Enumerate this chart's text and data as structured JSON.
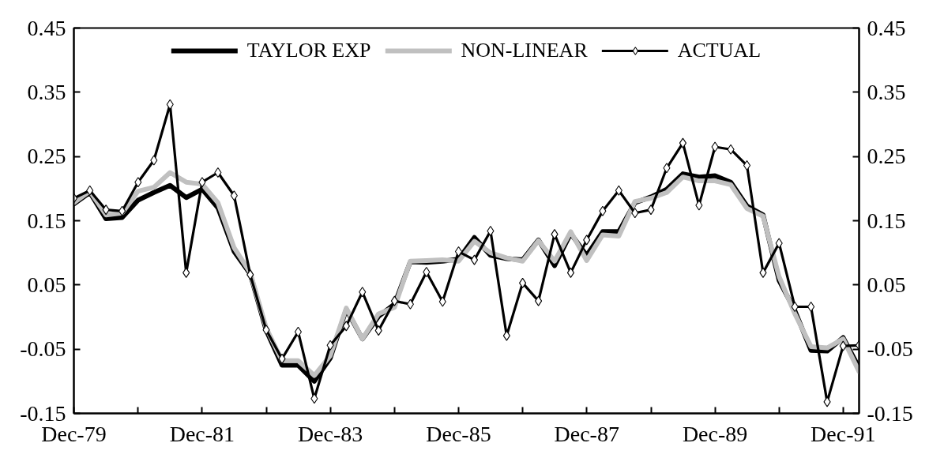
{
  "chart_data": {
    "type": "line",
    "legend": "top",
    "grid": false,
    "x": [
      "1979-12",
      "1980-03",
      "1980-06",
      "1980-09",
      "1980-12",
      "1981-03",
      "1981-06",
      "1981-09",
      "1981-12",
      "1982-03",
      "1982-06",
      "1982-09",
      "1982-12",
      "1983-03",
      "1983-06",
      "1983-09",
      "1983-12",
      "1984-03",
      "1984-06",
      "1984-09",
      "1984-12",
      "1985-03",
      "1985-06",
      "1985-09",
      "1985-12",
      "1986-03",
      "1986-06",
      "1986-09",
      "1986-12",
      "1987-03",
      "1987-06",
      "1987-09",
      "1987-12",
      "1988-03",
      "1988-06",
      "1988-09",
      "1988-12",
      "1989-03",
      "1989-06",
      "1989-09",
      "1989-12",
      "1990-03",
      "1990-06",
      "1990-09",
      "1990-12",
      "1991-03",
      "1991-06",
      "1991-09",
      "1991-12",
      "1992-03"
    ],
    "xlim": [
      "1979-12",
      "1992-03"
    ],
    "xticks": [
      {
        "value": "1979-12",
        "label": "Dec-79"
      },
      {
        "value": "1980-12",
        "label": null
      },
      {
        "value": "1981-12",
        "label": "Dec-81"
      },
      {
        "value": "1982-12",
        "label": null
      },
      {
        "value": "1983-12",
        "label": "Dec-83"
      },
      {
        "value": "1984-12",
        "label": null
      },
      {
        "value": "1985-12",
        "label": "Dec-85"
      },
      {
        "value": "1986-12",
        "label": null
      },
      {
        "value": "1987-12",
        "label": "Dec-87"
      },
      {
        "value": "1988-12",
        "label": null
      },
      {
        "value": "1989-12",
        "label": "Dec-89"
      },
      {
        "value": "1990-12",
        "label": null
      },
      {
        "value": "1991-12",
        "label": "Dec-91"
      }
    ],
    "ylim": [
      -0.15,
      0.45
    ],
    "yticks": [
      -0.15,
      -0.05,
      0.05,
      0.15,
      0.25,
      0.35,
      0.45
    ],
    "y2lim": [
      -0.15,
      0.45
    ],
    "y2ticks": [
      -0.15,
      -0.05,
      0.05,
      0.15,
      0.25,
      0.35,
      0.45
    ],
    "series": [
      {
        "name": "TAYLOR EXP",
        "color": "#000000",
        "marker": "none",
        "values": [
          0.176,
          0.194,
          0.153,
          0.155,
          0.182,
          0.194,
          0.205,
          0.186,
          0.199,
          0.17,
          0.102,
          0.067,
          -0.021,
          -0.075,
          -0.075,
          -0.1,
          -0.064,
          0.012,
          -0.034,
          0.001,
          0.02,
          0.086,
          0.085,
          0.087,
          0.09,
          0.124,
          0.096,
          0.091,
          0.089,
          0.12,
          0.08,
          0.13,
          0.096,
          0.133,
          0.133,
          0.178,
          0.187,
          0.199,
          0.223,
          0.218,
          0.22,
          0.21,
          0.173,
          0.159,
          0.057,
          0.01,
          -0.052,
          -0.053,
          -0.032,
          -0.079
        ]
      },
      {
        "name": "NON-LINEAR",
        "color": "#c0c0c0",
        "marker": "none",
        "values": [
          0.178,
          0.196,
          0.159,
          0.162,
          0.196,
          0.202,
          0.225,
          0.21,
          0.207,
          0.178,
          0.108,
          0.069,
          -0.017,
          -0.068,
          -0.068,
          -0.091,
          -0.06,
          0.014,
          -0.034,
          0.005,
          0.015,
          0.087,
          0.088,
          0.089,
          0.087,
          0.118,
          0.1,
          0.092,
          0.087,
          0.119,
          0.087,
          0.133,
          0.088,
          0.128,
          0.126,
          0.18,
          0.185,
          0.194,
          0.218,
          0.212,
          0.212,
          0.206,
          0.169,
          0.157,
          0.063,
          0.005,
          -0.046,
          -0.048,
          -0.034,
          -0.085
        ]
      },
      {
        "name": "ACTUAL",
        "color": "#000000",
        "marker": "diamond",
        "values": [
          0.185,
          0.197,
          0.167,
          0.165,
          0.21,
          0.244,
          0.331,
          0.069,
          0.21,
          0.225,
          0.189,
          0.066,
          -0.02,
          -0.065,
          -0.023,
          -0.127,
          -0.044,
          -0.014,
          0.039,
          -0.021,
          0.025,
          0.02,
          0.07,
          0.024,
          0.102,
          0.089,
          0.134,
          -0.029,
          0.053,
          0.025,
          0.129,
          0.069,
          0.12,
          0.165,
          0.197,
          0.162,
          0.167,
          0.232,
          0.271,
          0.174,
          0.265,
          0.261,
          0.236,
          0.069,
          0.115,
          0.016,
          0.016,
          -0.132,
          -0.045,
          -0.044
        ]
      }
    ]
  }
}
